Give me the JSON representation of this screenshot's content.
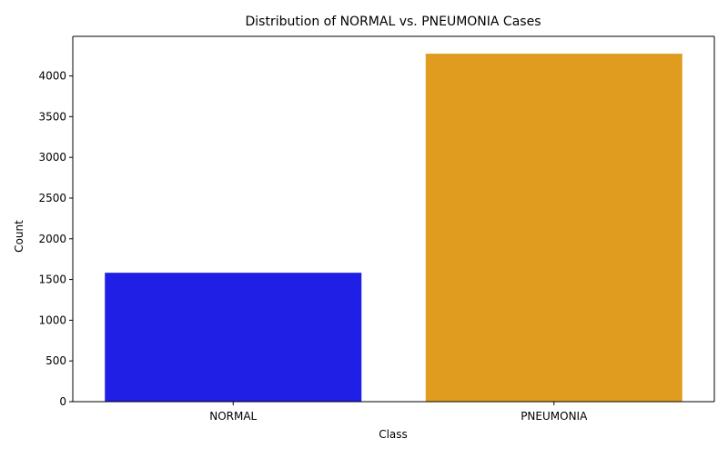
{
  "chart_data": {
    "type": "bar",
    "title": "Distribution of NORMAL vs. PNEUMONIA Cases",
    "xlabel": "Class",
    "ylabel": "Count",
    "categories": [
      "NORMAL",
      "PNEUMONIA"
    ],
    "values": [
      1583,
      4273
    ],
    "colors": [
      "#1f1fe6",
      "#e09c1e"
    ],
    "ylim": [
      0,
      4486
    ],
    "yticks": [
      0,
      500,
      1000,
      1500,
      2000,
      2500,
      3000,
      3500,
      4000
    ],
    "grid": false,
    "legend": "none"
  }
}
